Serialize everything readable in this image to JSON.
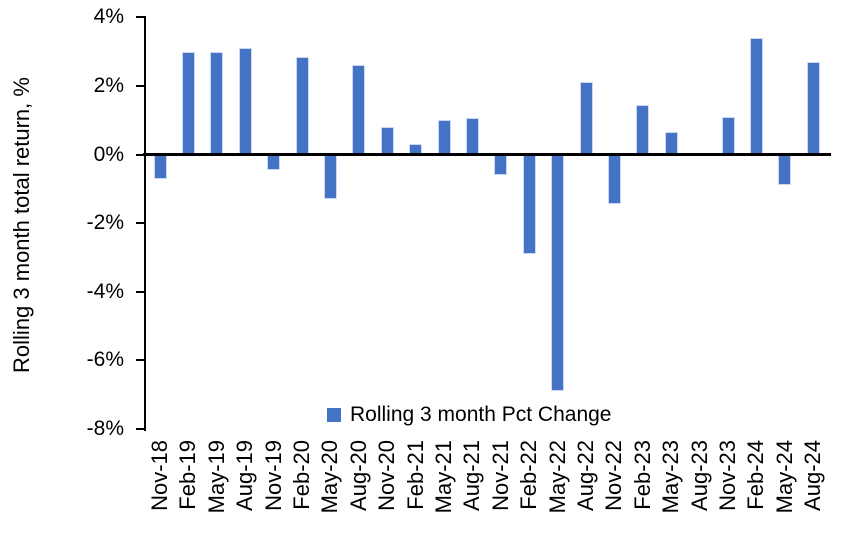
{
  "chart_data": {
    "type": "bar",
    "title": "",
    "ylabel": "Rolling 3 month total return, %",
    "xlabel": "",
    "categories": [
      "Nov-18",
      "Feb-19",
      "May-19",
      "Aug-19",
      "Nov-19",
      "Feb-20",
      "May-20",
      "Aug-20",
      "Nov-20",
      "Feb-21",
      "May-21",
      "Aug-21",
      "Nov-21",
      "Feb-22",
      "May-22",
      "Aug-22",
      "Nov-22",
      "Feb-23",
      "May-23",
      "Aug-23",
      "Nov-23",
      "Feb-24",
      "May-24",
      "Aug-24"
    ],
    "series": [
      {
        "name": "Rolling 3 month Pct Change",
        "values": [
          -0.7,
          3.0,
          3.0,
          3.1,
          -0.45,
          2.85,
          -1.3,
          2.6,
          0.8,
          0.3,
          1.0,
          1.05,
          -0.6,
          -2.9,
          -6.9,
          2.1,
          -1.45,
          1.45,
          0.65,
          0.0,
          1.1,
          3.4,
          -0.9,
          2.7
        ]
      }
    ],
    "ylim": [
      -8,
      4
    ],
    "yticks": [
      4,
      2,
      0,
      -2,
      -4,
      -6,
      -8
    ],
    "ytick_labels": [
      "4%",
      "2%",
      "0%",
      "-2%",
      "-4%",
      "-6%",
      "-8%"
    ],
    "grid": false,
    "legend_position": "bottom-center",
    "colors": {
      "bar": "#4472C4",
      "bar_edge": "#cdd9f0",
      "axis": "#000000",
      "text": "#000000",
      "background": "#FFFFFF"
    }
  },
  "legend": {
    "label": "Rolling 3 month Pct Change",
    "marker_color": "#4472C4"
  }
}
